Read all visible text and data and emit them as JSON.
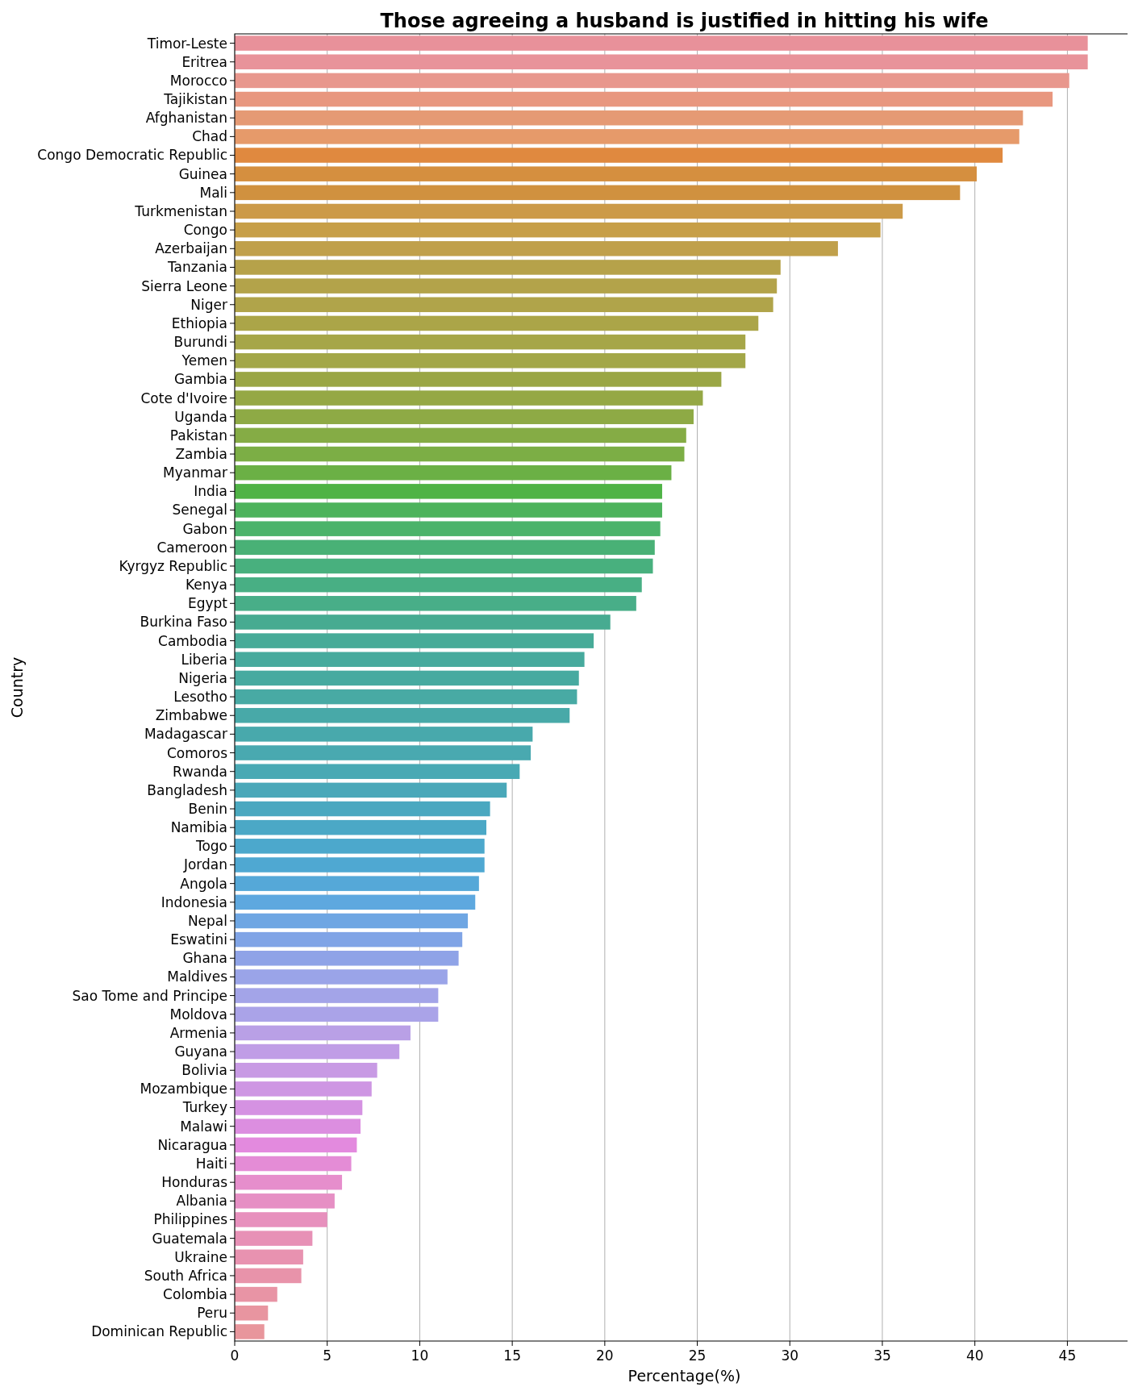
{
  "chart_data": {
    "type": "bar",
    "orientation": "horizontal",
    "title": "Those agreeing a husband is justified in hitting his wife",
    "xlabel": "Percentage(%)",
    "ylabel": "Country",
    "categories": [
      "Timor-Leste",
      "Eritrea",
      "Morocco",
      "Tajikistan",
      "Afghanistan",
      "Chad",
      "Congo Democratic Republic",
      "Guinea",
      "Mali",
      "Turkmenistan",
      "Congo",
      "Azerbaijan",
      "Tanzania",
      "Sierra Leone",
      "Niger",
      "Ethiopia",
      "Burundi",
      "Yemen",
      "Gambia",
      "Cote d'Ivoire",
      "Uganda",
      "Pakistan",
      "Zambia",
      "Myanmar",
      "India",
      "Senegal",
      "Gabon",
      "Cameroon",
      "Kyrgyz Republic",
      "Kenya",
      "Egypt",
      "Burkina Faso",
      "Cambodia",
      "Liberia",
      "Nigeria",
      "Lesotho",
      "Zimbabwe",
      "Madagascar",
      "Comoros",
      "Rwanda",
      "Bangladesh",
      "Benin",
      "Namibia",
      "Togo",
      "Jordan",
      "Angola",
      "Indonesia",
      "Nepal",
      "Eswatini",
      "Ghana",
      "Maldives",
      "Sao Tome and Principe",
      "Moldova",
      "Armenia",
      "Guyana",
      "Bolivia",
      "Mozambique",
      "Turkey",
      "Malawi",
      "Nicaragua",
      "Haiti",
      "Honduras",
      "Albania",
      "Philippines",
      "Guatemala",
      "Ukraine",
      "South Africa",
      "Colombia",
      "Peru",
      "Dominican Republic"
    ],
    "values": [
      46.1,
      46.1,
      45.1,
      44.2,
      42.6,
      42.4,
      41.5,
      40.1,
      39.2,
      36.1,
      34.9,
      32.6,
      29.5,
      29.3,
      29.1,
      28.3,
      27.6,
      27.6,
      26.3,
      25.3,
      24.8,
      24.4,
      24.3,
      23.6,
      23.1,
      23.1,
      23.0,
      22.7,
      22.6,
      22.0,
      21.7,
      20.3,
      19.4,
      18.9,
      18.6,
      18.5,
      18.1,
      16.1,
      16.0,
      15.4,
      14.7,
      13.8,
      13.6,
      13.5,
      13.5,
      13.2,
      13.0,
      12.6,
      12.3,
      12.1,
      11.5,
      11.0,
      11.0,
      9.5,
      8.9,
      7.7,
      7.4,
      6.9,
      6.8,
      6.6,
      6.3,
      5.8,
      5.4,
      5.0,
      4.2,
      3.7,
      3.6,
      2.3,
      1.8,
      1.6
    ],
    "colors": [
      "#e8919a",
      "#e8939a",
      "#e8978d",
      "#e8977f",
      "#e59a74",
      "#e69a6a",
      "#e0893f",
      "#d58f3f",
      "#d0913f",
      "#cc9a48",
      "#c79f48",
      "#c0a04b",
      "#b6a24a",
      "#b3a34a",
      "#b0a44a",
      "#aba548",
      "#a6a648",
      "#a3a748",
      "#9aa645",
      "#95a845",
      "#8eaa45",
      "#85ac45",
      "#7cae45",
      "#6bb045",
      "#4fb345",
      "#4db35c",
      "#4bb36a",
      "#49b176",
      "#48b07e",
      "#48af84",
      "#48ae88",
      "#47ab91",
      "#47ab98",
      "#47aa9d",
      "#47aaa0",
      "#48aaa4",
      "#48a9a8",
      "#48a9ac",
      "#49a9b0",
      "#49a9b4",
      "#4aa8b9",
      "#4aa8c0",
      "#4ba8c6",
      "#4ca8cc",
      "#4fa8d2",
      "#55a8d8",
      "#5ea8df",
      "#6ea6e3",
      "#80a4e6",
      "#8fa3e7",
      "#9aa4e8",
      "#a3a4e8",
      "#aaa3e8",
      "#b9a0e6",
      "#c09de6",
      "#c89ae4",
      "#ce96e3",
      "#d592e2",
      "#dc8ee0",
      "#e38ade",
      "#e48cd6",
      "#e68ecc",
      "#e68fc4",
      "#e790bd",
      "#e791b6",
      "#e892b0",
      "#e893aa",
      "#e894a5",
      "#e895a0",
      "#e8969c"
    ],
    "xlim": [
      0,
      48.6
    ],
    "xticks": [
      0,
      5,
      10,
      15,
      20,
      25,
      30,
      35,
      40,
      45
    ],
    "grid": "x"
  }
}
